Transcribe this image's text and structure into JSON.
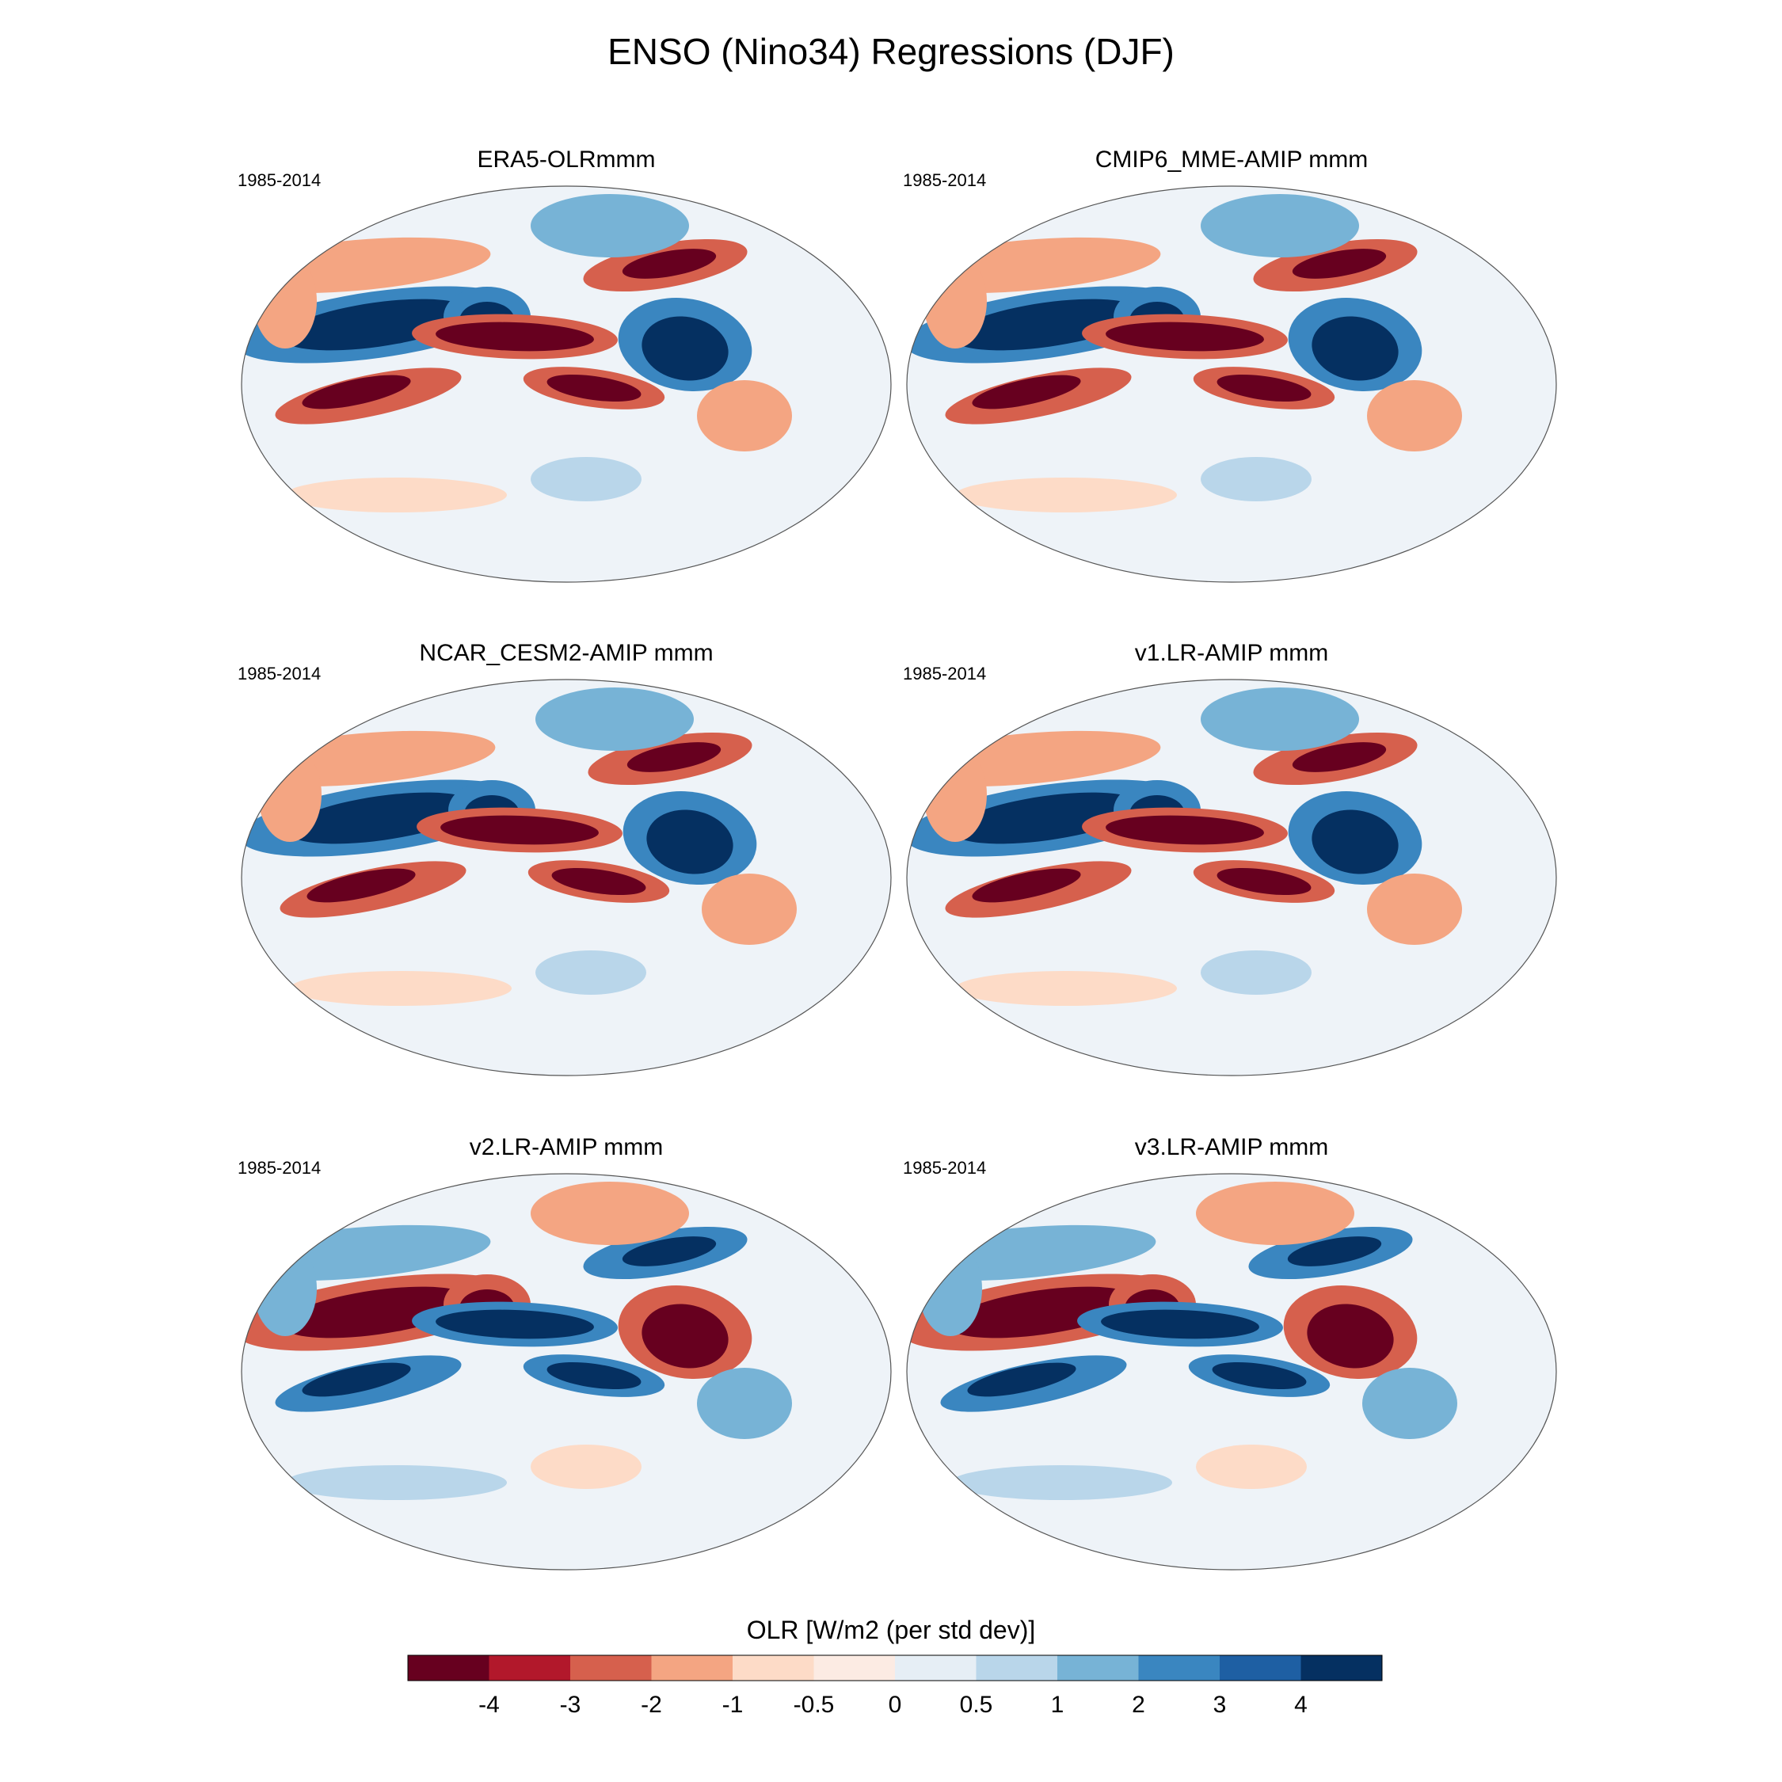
{
  "page": {
    "title": "ENSO (Nino34) Regressions (DJF)"
  },
  "chart_data": [
    {
      "type": "heatmap",
      "title": "ERA5-OLRmmm",
      "period": "1985-2014",
      "projection": "robinson",
      "pattern": "observed",
      "variable": "OLR",
      "units": "W/m2 (per std dev)"
    },
    {
      "type": "heatmap",
      "title": "CMIP6_MME-AMIP  mmm",
      "period": "1985-2014",
      "projection": "robinson",
      "pattern": "positive",
      "variable": "OLR",
      "units": "W/m2 (per std dev)"
    },
    {
      "type": "heatmap",
      "title": "NCAR_CESM2-AMIP  mmm",
      "period": "1985-2014",
      "projection": "robinson",
      "pattern": "positive",
      "variable": "OLR",
      "units": "W/m2 (per std dev)"
    },
    {
      "type": "heatmap",
      "title": "v1.LR-AMIP  mmm",
      "period": "1985-2014",
      "projection": "robinson",
      "pattern": "positive",
      "variable": "OLR",
      "units": "W/m2 (per std dev)"
    },
    {
      "type": "heatmap",
      "title": "v2.LR-AMIP  mmm",
      "period": "1985-2014",
      "projection": "robinson",
      "pattern": "inverted",
      "variable": "OLR",
      "units": "W/m2 (per std dev)"
    },
    {
      "type": "heatmap",
      "title": "v3.LR-AMIP  mmm",
      "period": "1985-2014",
      "projection": "robinson",
      "pattern": "inverted",
      "variable": "OLR",
      "units": "W/m2 (per std dev)"
    }
  ],
  "colorbar": {
    "title": "OLR [W/m2 (per std dev)]",
    "tick_labels": [
      "-4",
      "-3",
      "-2",
      "-1",
      "-0.5",
      "0",
      "0.5",
      "1",
      "2",
      "3",
      "4"
    ],
    "colors": [
      "#67001f",
      "#b2182b",
      "#d6604d",
      "#f4a582",
      "#fddbc7",
      "#fcebe3",
      "#e6eef5",
      "#b9d6ea",
      "#77b3d6",
      "#3a86c0",
      "#1e5fa3",
      "#053061"
    ]
  }
}
